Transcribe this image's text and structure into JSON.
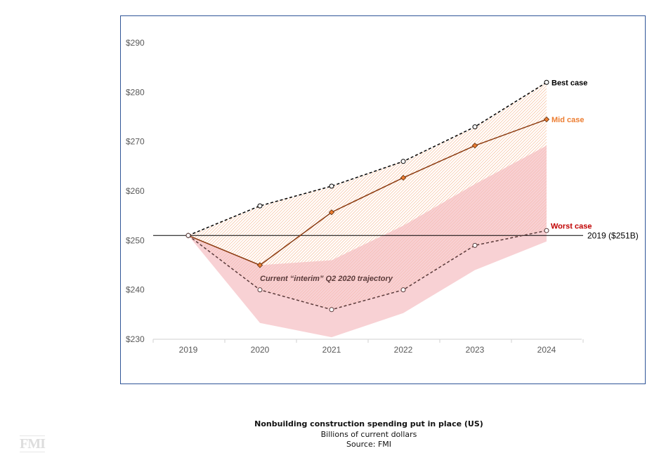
{
  "chart_data": {
    "type": "line",
    "title": "Nonbuilding construction spending put in place (US)",
    "subtitle": "Billions of current dollars",
    "source": "Source: FMI",
    "x": [
      "2019",
      "2020",
      "2021",
      "2022",
      "2023",
      "2024"
    ],
    "ylim": [
      230,
      290
    ],
    "yticks": [
      230,
      240,
      250,
      260,
      270,
      280,
      290
    ],
    "ytick_labels": [
      "$230",
      "$240",
      "$250",
      "$260",
      "$270",
      "$280",
      "$290"
    ],
    "grid": false,
    "series": [
      {
        "name": "Best case",
        "values": [
          251,
          257,
          261,
          266,
          273,
          282
        ],
        "color": "#000000",
        "style": "dashed"
      },
      {
        "name": "Mid case",
        "values": [
          251,
          245,
          255.7,
          262.7,
          269.2,
          274.5
        ],
        "color": "#ed7d31",
        "line_color": "#8b3a0f",
        "style": "solid"
      },
      {
        "name": "Worst case",
        "values": [
          251,
          240,
          236,
          240,
          249,
          252
        ],
        "color": "#c00000",
        "line_color": "#5a3a3a",
        "style": "dashed"
      }
    ],
    "band": {
      "label": "Current “interim” Q2 2020 trajectory",
      "upper": [
        251,
        245,
        246,
        253,
        261.4,
        269.2
      ],
      "lower": [
        251,
        233.3,
        230.4,
        235.3,
        244,
        249.8
      ],
      "color": "#f4b8bd"
    },
    "reference_line": {
      "value": 251,
      "label": "2019 ($251B)"
    }
  },
  "logo_text": "FMI"
}
